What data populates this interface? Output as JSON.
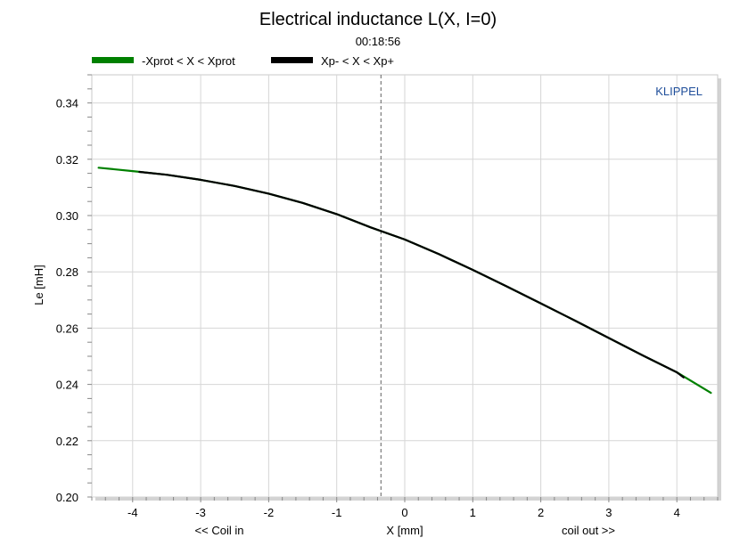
{
  "chart_data": {
    "type": "line",
    "title": "Electrical inductance L(X, I=0)",
    "subtitle": "00:18:56",
    "watermark": "KLIPPEL",
    "xlabel": "X [mm]",
    "ylabel": "Le [mH]",
    "x_left_note": "<< Coil in",
    "x_right_note": "coil out >>",
    "xlim": [
      -4.6,
      4.6
    ],
    "ylim": [
      0.2,
      0.35
    ],
    "xticks": [
      -4,
      -3,
      -2,
      -1,
      0,
      1,
      2,
      3,
      4
    ],
    "yticks": [
      0.2,
      0.22,
      0.24,
      0.26,
      0.28,
      0.3,
      0.32,
      0.34
    ],
    "grid": true,
    "legend_position": "top-left",
    "vertical_marker_x": -0.35,
    "series": [
      {
        "name": "-Xprot < X < Xprot",
        "color": "#008000",
        "x": [
          -4.5,
          -4.0,
          -3.5,
          -3.0,
          -2.5,
          -2.0,
          -1.5,
          -1.0,
          -0.5,
          0.0,
          0.5,
          1.0,
          1.5,
          2.0,
          2.5,
          3.0,
          3.5,
          4.0,
          4.5
        ],
        "y": [
          0.317,
          0.3158,
          0.3145,
          0.3127,
          0.3105,
          0.3078,
          0.3045,
          0.3005,
          0.2958,
          0.2915,
          0.2863,
          0.2807,
          0.2748,
          0.2688,
          0.2627,
          0.2565,
          0.2503,
          0.2443,
          0.237
        ]
      },
      {
        "name": "Xp- < X < Xp+",
        "color": "#000000",
        "x": [
          -3.9,
          -3.5,
          -3.0,
          -2.5,
          -2.0,
          -1.5,
          -1.0,
          -0.5,
          0.0,
          0.5,
          1.0,
          1.5,
          2.0,
          2.5,
          3.0,
          3.5,
          4.0,
          4.1
        ],
        "y": [
          0.3155,
          0.3145,
          0.3127,
          0.3105,
          0.3078,
          0.3045,
          0.3005,
          0.2958,
          0.2915,
          0.2863,
          0.2807,
          0.2748,
          0.2688,
          0.2627,
          0.2565,
          0.2503,
          0.2443,
          0.2425
        ]
      }
    ]
  }
}
